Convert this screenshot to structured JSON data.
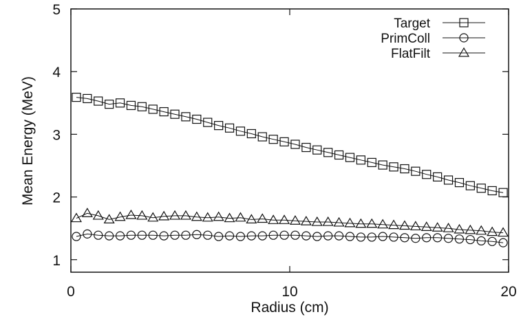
{
  "chart_data": {
    "type": "line",
    "xlabel": "Radius (cm)",
    "ylabel": "Mean Energy (MeV)",
    "xlim": [
      0,
      20
    ],
    "ylim": [
      0.8,
      5
    ],
    "xticks": [
      0,
      10,
      20
    ],
    "yticks": [
      1,
      2,
      3,
      4,
      5
    ],
    "grid": false,
    "legend_position": "top-right",
    "x": [
      0.25,
      0.75,
      1.25,
      1.75,
      2.25,
      2.75,
      3.25,
      3.75,
      4.25,
      4.75,
      5.25,
      5.75,
      6.25,
      6.75,
      7.25,
      7.75,
      8.25,
      8.75,
      9.25,
      9.75,
      10.25,
      10.75,
      11.25,
      11.75,
      12.25,
      12.75,
      13.25,
      13.75,
      14.25,
      14.75,
      15.25,
      15.75,
      16.25,
      16.75,
      17.25,
      17.75,
      18.25,
      18.75,
      19.25,
      19.75
    ],
    "series": [
      {
        "name": "Target",
        "marker": "square",
        "values": [
          3.59,
          3.57,
          3.53,
          3.48,
          3.5,
          3.46,
          3.44,
          3.4,
          3.36,
          3.32,
          3.28,
          3.24,
          3.19,
          3.14,
          3.1,
          3.05,
          3.01,
          2.96,
          2.92,
          2.88,
          2.84,
          2.79,
          2.75,
          2.71,
          2.67,
          2.63,
          2.59,
          2.55,
          2.51,
          2.48,
          2.45,
          2.41,
          2.36,
          2.32,
          2.27,
          2.23,
          2.18,
          2.14,
          2.1,
          2.07
        ]
      },
      {
        "name": "PrimColl",
        "marker": "circle",
        "values": [
          1.37,
          1.41,
          1.39,
          1.38,
          1.38,
          1.39,
          1.39,
          1.39,
          1.38,
          1.39,
          1.39,
          1.4,
          1.39,
          1.37,
          1.38,
          1.37,
          1.38,
          1.38,
          1.39,
          1.39,
          1.39,
          1.38,
          1.37,
          1.38,
          1.38,
          1.37,
          1.36,
          1.36,
          1.37,
          1.36,
          1.35,
          1.34,
          1.35,
          1.35,
          1.34,
          1.33,
          1.32,
          1.3,
          1.29,
          1.27
        ]
      },
      {
        "name": "FlatFilt",
        "marker": "triangle",
        "values": [
          1.66,
          1.74,
          1.7,
          1.64,
          1.68,
          1.71,
          1.7,
          1.67,
          1.69,
          1.7,
          1.7,
          1.68,
          1.67,
          1.68,
          1.66,
          1.67,
          1.64,
          1.65,
          1.63,
          1.63,
          1.62,
          1.61,
          1.6,
          1.6,
          1.59,
          1.58,
          1.57,
          1.57,
          1.56,
          1.55,
          1.54,
          1.53,
          1.52,
          1.51,
          1.5,
          1.48,
          1.47,
          1.46,
          1.44,
          1.43
        ]
      }
    ]
  }
}
